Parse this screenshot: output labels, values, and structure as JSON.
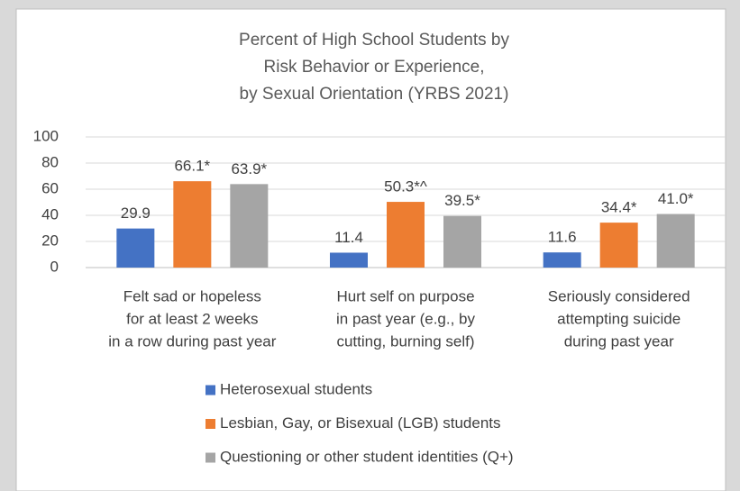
{
  "chart_data": {
    "type": "bar",
    "title": [
      "Percent of High School Students by",
      "Risk Behavior or Experience,",
      "by Sexual Orientation (YRBS 2021)"
    ],
    "categories": [
      [
        "Felt sad or hopeless",
        "for at least 2 weeks",
        "in a row during past year"
      ],
      [
        "Hurt self on purpose",
        "in past year (e.g., by",
        "cutting, burning self)"
      ],
      [
        "Seriously considered",
        "attempting suicide",
        "during past year"
      ]
    ],
    "series": [
      {
        "name": "Heterosexual students",
        "color": "#4472c4",
        "values": [
          29.9,
          11.4,
          11.6
        ]
      },
      {
        "name": "Lesbian, Gay, or Bisexual (LGB) students",
        "color": "#ed7d31",
        "values": [
          66.1,
          50.3,
          34.4
        ],
        "value_labels": [
          "66.1*",
          "50.3*^",
          "34.4*"
        ]
      },
      {
        "name": "Questioning or other student identities (Q+)",
        "color": "#a5a5a5",
        "values": [
          63.9,
          39.5,
          41.0
        ],
        "value_labels": [
          "63.9*",
          "39.5*",
          "41.0*"
        ]
      }
    ],
    "ylim": [
      0,
      100
    ],
    "yticks": [
      0,
      20,
      40,
      60,
      80,
      100
    ],
    "grid": true,
    "legend": "bottom"
  }
}
